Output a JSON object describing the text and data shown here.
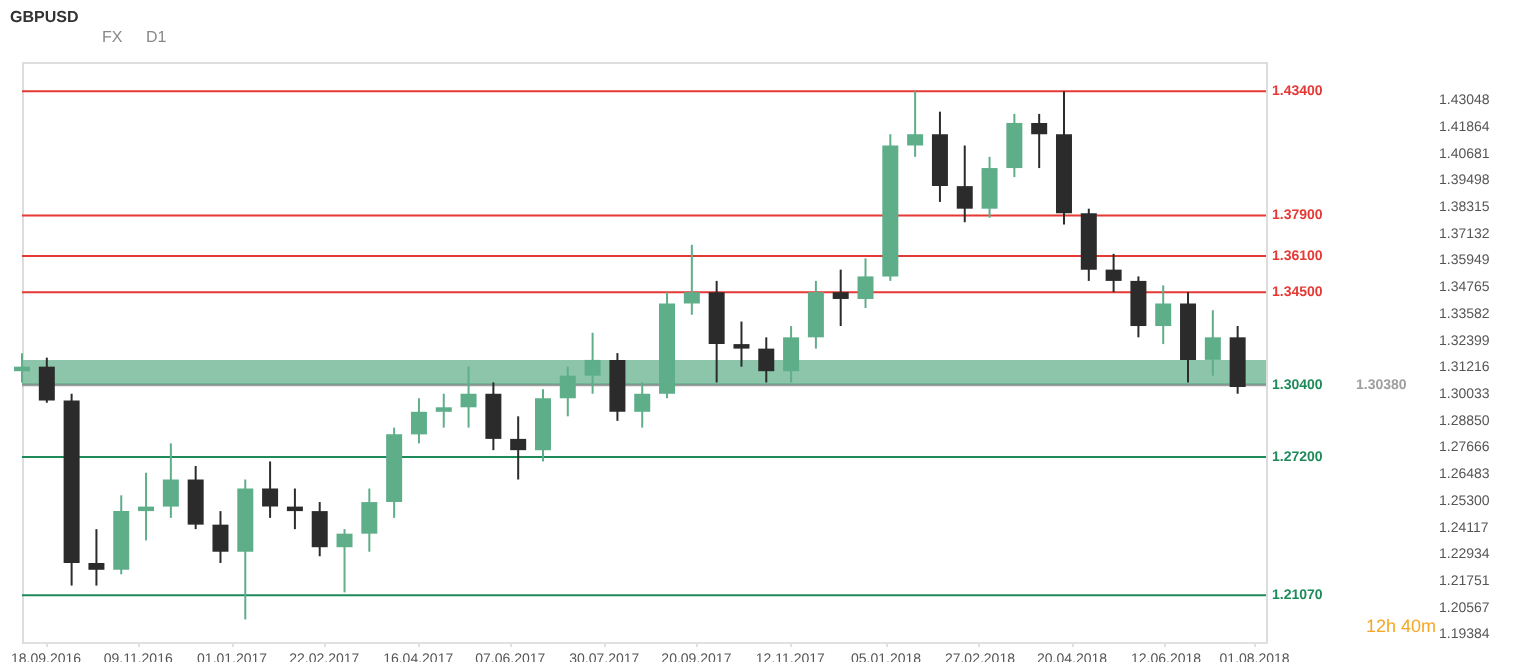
{
  "chart_data": {
    "type": "candlestick",
    "title": "GBPUSD",
    "annotations": [
      "FX",
      "D1",
      "12h 40m"
    ],
    "x": [
      "2016-09-05",
      "2016-09-19",
      "2016-10-03",
      "2016-10-17",
      "2016-10-31",
      "2016-11-14",
      "2016-11-28",
      "2016-12-12",
      "2016-12-26",
      "2017-01-09",
      "2017-01-23",
      "2017-02-06",
      "2017-02-20",
      "2017-03-06",
      "2017-03-20",
      "2017-04-03",
      "2017-04-17",
      "2017-05-01",
      "2017-05-15",
      "2017-05-29",
      "2017-06-12",
      "2017-06-26",
      "2017-07-10",
      "2017-07-24",
      "2017-08-07",
      "2017-08-21",
      "2017-09-04",
      "2017-09-18",
      "2017-10-02",
      "2017-10-16",
      "2017-10-30",
      "2017-11-13",
      "2017-11-27",
      "2017-12-11",
      "2017-12-25",
      "2018-01-08",
      "2018-01-22",
      "2018-02-05",
      "2018-02-19",
      "2018-03-05",
      "2018-03-19",
      "2018-04-02",
      "2018-04-16",
      "2018-04-30",
      "2018-05-14",
      "2018-05-28",
      "2018-06-11",
      "2018-06-25",
      "2018-07-09",
      "2018-07-23"
    ],
    "ohlc": [
      [
        1.31,
        1.318,
        1.305,
        1.312
      ],
      [
        1.312,
        1.316,
        1.296,
        1.297
      ],
      [
        1.297,
        1.3,
        1.215,
        1.225
      ],
      [
        1.225,
        1.24,
        1.215,
        1.222
      ],
      [
        1.222,
        1.255,
        1.22,
        1.248
      ],
      [
        1.248,
        1.265,
        1.235,
        1.25
      ],
      [
        1.25,
        1.278,
        1.245,
        1.262
      ],
      [
        1.262,
        1.268,
        1.24,
        1.242
      ],
      [
        1.242,
        1.248,
        1.225,
        1.23
      ],
      [
        1.23,
        1.262,
        1.2,
        1.258
      ],
      [
        1.258,
        1.27,
        1.245,
        1.25
      ],
      [
        1.25,
        1.258,
        1.24,
        1.248
      ],
      [
        1.248,
        1.252,
        1.228,
        1.232
      ],
      [
        1.232,
        1.24,
        1.212,
        1.238
      ],
      [
        1.238,
        1.258,
        1.23,
        1.252
      ],
      [
        1.252,
        1.285,
        1.245,
        1.282
      ],
      [
        1.282,
        1.298,
        1.278,
        1.292
      ],
      [
        1.292,
        1.3,
        1.285,
        1.294
      ],
      [
        1.294,
        1.312,
        1.285,
        1.3
      ],
      [
        1.3,
        1.305,
        1.275,
        1.28
      ],
      [
        1.28,
        1.29,
        1.262,
        1.275
      ],
      [
        1.275,
        1.302,
        1.27,
        1.298
      ],
      [
        1.298,
        1.312,
        1.29,
        1.308
      ],
      [
        1.308,
        1.327,
        1.3,
        1.315
      ],
      [
        1.315,
        1.318,
        1.288,
        1.292
      ],
      [
        1.292,
        1.305,
        1.285,
        1.3
      ],
      [
        1.3,
        1.345,
        1.298,
        1.34
      ],
      [
        1.34,
        1.366,
        1.335,
        1.345
      ],
      [
        1.345,
        1.35,
        1.305,
        1.322
      ],
      [
        1.322,
        1.332,
        1.312,
        1.32
      ],
      [
        1.32,
        1.325,
        1.305,
        1.31
      ],
      [
        1.31,
        1.33,
        1.305,
        1.325
      ],
      [
        1.325,
        1.35,
        1.32,
        1.345
      ],
      [
        1.345,
        1.355,
        1.33,
        1.342
      ],
      [
        1.342,
        1.36,
        1.338,
        1.352
      ],
      [
        1.352,
        1.415,
        1.35,
        1.41
      ],
      [
        1.41,
        1.434,
        1.405,
        1.415
      ],
      [
        1.415,
        1.425,
        1.385,
        1.392
      ],
      [
        1.392,
        1.41,
        1.376,
        1.382
      ],
      [
        1.382,
        1.405,
        1.378,
        1.4
      ],
      [
        1.4,
        1.424,
        1.396,
        1.42
      ],
      [
        1.42,
        1.424,
        1.4,
        1.415
      ],
      [
        1.415,
        1.434,
        1.375,
        1.38
      ],
      [
        1.38,
        1.382,
        1.35,
        1.355
      ],
      [
        1.355,
        1.362,
        1.345,
        1.35
      ],
      [
        1.35,
        1.352,
        1.325,
        1.33
      ],
      [
        1.33,
        1.348,
        1.322,
        1.34
      ],
      [
        1.34,
        1.345,
        1.305,
        1.315
      ],
      [
        1.315,
        1.337,
        1.308,
        1.325
      ],
      [
        1.325,
        1.33,
        1.3,
        1.303
      ]
    ],
    "colors": [
      "#5fae8a",
      "#2b2b2b",
      "#2b2b2b",
      "#2b2b2b",
      "#5fae8a",
      "#5fae8a",
      "#5fae8a",
      "#2b2b2b",
      "#2b2b2b",
      "#5fae8a",
      "#2b2b2b",
      "#2b2b2b",
      "#2b2b2b",
      "#5fae8a",
      "#5fae8a",
      "#5fae8a",
      "#5fae8a",
      "#5fae8a",
      "#5fae8a",
      "#2b2b2b",
      "#2b2b2b",
      "#5fae8a",
      "#5fae8a",
      "#5fae8a",
      "#2b2b2b",
      "#5fae8a",
      "#5fae8a",
      "#5fae8a",
      "#2b2b2b",
      "#2b2b2b",
      "#2b2b2b",
      "#5fae8a",
      "#5fae8a",
      "#2b2b2b",
      "#5fae8a",
      "#5fae8a",
      "#5fae8a",
      "#2b2b2b",
      "#2b2b2b",
      "#5fae8a",
      "#5fae8a",
      "#2b2b2b",
      "#2b2b2b",
      "#2b2b2b",
      "#2b2b2b",
      "#2b2b2b",
      "#5fae8a",
      "#2b2b2b",
      "#5fae8a",
      "#2b2b2b"
    ],
    "xlim": [
      "2016-09-05",
      "2018-08-08"
    ],
    "xticks": [
      {
        "value": "2016-09-18",
        "label": "18.09.2016"
      },
      {
        "value": "2016-11-09",
        "label": "09.11.2016"
      },
      {
        "value": "2017-01-01",
        "label": "01.01.2017"
      },
      {
        "value": "2017-02-22",
        "label": "22.02.2017"
      },
      {
        "value": "2017-04-16",
        "label": "16.04.2017"
      },
      {
        "value": "2017-06-07",
        "label": "07.06.2017"
      },
      {
        "value": "2017-07-30",
        "label": "30.07.2017"
      },
      {
        "value": "2017-09-20",
        "label": "20.09.2017"
      },
      {
        "value": "2017-11-12",
        "label": "12.11.2017"
      },
      {
        "value": "2018-01-05",
        "label": "05.01.2018"
      },
      {
        "value": "2018-02-27",
        "label": "27.02.2018"
      },
      {
        "value": "2018-04-20",
        "label": "20.04.2018"
      },
      {
        "value": "2018-06-12",
        "label": "12.06.2018"
      },
      {
        "value": "2018-08-01",
        "label": "01.08.2018"
      }
    ],
    "ylim": [
      1.19,
      1.447
    ],
    "yticks": [
      {
        "value": 1.43048,
        "label": "1.43048"
      },
      {
        "value": 1.41864,
        "label": "1.41864"
      },
      {
        "value": 1.40681,
        "label": "1.40681"
      },
      {
        "value": 1.39498,
        "label": "1.39498"
      },
      {
        "value": 1.38315,
        "label": "1.38315"
      },
      {
        "value": 1.37132,
        "label": "1.37132"
      },
      {
        "value": 1.35949,
        "label": "1.35949"
      },
      {
        "value": 1.34765,
        "label": "1.34765"
      },
      {
        "value": 1.33582,
        "label": "1.33582"
      },
      {
        "value": 1.32399,
        "label": "1.32399"
      },
      {
        "value": 1.31216,
        "label": "1.31216"
      },
      {
        "value": 1.30033,
        "label": "1.30033"
      },
      {
        "value": 1.2885,
        "label": "1.28850"
      },
      {
        "value": 1.27666,
        "label": "1.27666"
      },
      {
        "value": 1.26483,
        "label": "1.26483"
      },
      {
        "value": 1.253,
        "label": "1.25300"
      },
      {
        "value": 1.24117,
        "label": "1.24117"
      },
      {
        "value": 1.22934,
        "label": "1.22934"
      },
      {
        "value": 1.21751,
        "label": "1.21751"
      },
      {
        "value": 1.20567,
        "label": "1.20567"
      },
      {
        "value": 1.19384,
        "label": "1.19384"
      }
    ],
    "bands": [
      {
        "axis": "y",
        "from": 1.304,
        "to": 1.315,
        "color": "#7fbfa0"
      }
    ],
    "ref_lines": [
      {
        "axis": "y",
        "value": 1.434,
        "label": "1.43400",
        "color": "#e53935"
      },
      {
        "axis": "y",
        "value": 1.379,
        "label": "1.37900",
        "color": "#e53935"
      },
      {
        "axis": "y",
        "value": 1.361,
        "label": "1.36100",
        "color": "#e53935"
      },
      {
        "axis": "y",
        "value": 1.345,
        "label": "1.34500",
        "color": "#e53935"
      },
      {
        "axis": "y",
        "value": 1.304,
        "label": "1.30400",
        "color": "#1e8a5a"
      },
      {
        "axis": "y",
        "value": 1.3038,
        "label": "1.30380",
        "color": "#9e9e9e"
      },
      {
        "axis": "y",
        "value": 1.272,
        "label": "1.27200",
        "color": "#1e8a5a"
      },
      {
        "axis": "y",
        "value": 1.2107,
        "label": "1.21070",
        "color": "#1e8a5a"
      }
    ],
    "grid": false
  }
}
